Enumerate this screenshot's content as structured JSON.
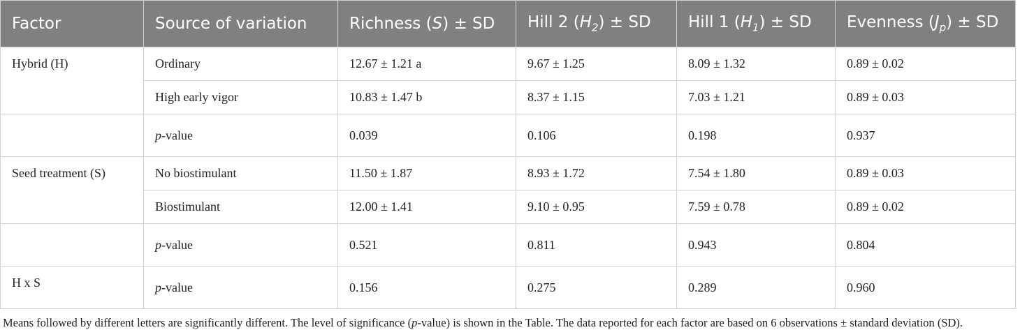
{
  "table": {
    "headers": [
      "Factor",
      "Source of variation",
      [
        {
          "t": "Richness ("
        },
        {
          "t": "S",
          "i": true
        },
        {
          "t": ") ± SD"
        }
      ],
      [
        {
          "t": "Hill 2 ("
        },
        {
          "t": "H",
          "i": true
        },
        {
          "t": "2",
          "i": true,
          "sub": true
        },
        {
          "t": ") ± SD"
        }
      ],
      [
        {
          "t": "Hill 1 ("
        },
        {
          "t": "H",
          "i": true
        },
        {
          "t": "1",
          "i": true,
          "sub": true
        },
        {
          "t": ") ± SD"
        }
      ],
      [
        {
          "t": "Evenness ("
        },
        {
          "t": "J",
          "i": true
        },
        {
          "t": "p",
          "i": true,
          "sub": true
        },
        {
          "t": ") ± SD"
        }
      ]
    ],
    "groups": [
      {
        "factor": "Hybrid (H)",
        "rows": [
          [
            "Ordinary",
            "12.67 ± 1.21 a",
            "9.67 ± 1.25",
            "8.09 ± 1.32",
            "0.89 ± 0.02"
          ],
          [
            "High early vigor",
            "10.83 ± 1.47 b",
            "8.37 ± 1.15",
            "7.03 ± 1.21",
            "0.89 ± 0.03"
          ]
        ]
      },
      {
        "rows": [
          [
            [
              {
                "t": "p",
                "i": true
              },
              {
                "t": "-value"
              }
            ],
            "0.039",
            "0.106",
            "0.198",
            "0.937"
          ]
        ]
      },
      {
        "factor": "Seed treatment (S)",
        "rows": [
          [
            "No biostimulant",
            "11.50 ± 1.87",
            "8.93 ± 1.72",
            "7.54 ± 1.80",
            "0.89 ± 0.03"
          ],
          [
            "Biostimulant",
            "12.00 ± 1.41",
            "9.10 ± 0.95",
            "7.59 ± 0.78",
            "0.89 ± 0.02"
          ]
        ]
      },
      {
        "rows": [
          [
            [
              {
                "t": "p",
                "i": true
              },
              {
                "t": "-value"
              }
            ],
            "0.521",
            "0.811",
            "0.943",
            "0.804"
          ]
        ]
      },
      {
        "factor": "H x S",
        "rows": [
          [
            [
              {
                "t": "p",
                "i": true
              },
              {
                "t": "-value"
              }
            ],
            "0.156",
            "0.275",
            "0.289",
            "0.960"
          ]
        ]
      }
    ]
  },
  "footnote": [
    {
      "t": "Means followed by different letters are significantly different. The level of significance ("
    },
    {
      "t": "p",
      "i": true
    },
    {
      "t": "-value) is shown in the Table. The data reported for each factor are based on 6 observations ± standard deviation (SD)."
    }
  ]
}
